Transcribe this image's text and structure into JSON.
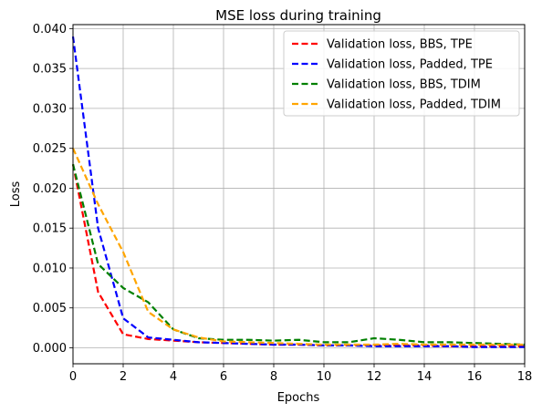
{
  "chart_data": {
    "type": "line",
    "title": "MSE loss during training",
    "xlabel": "Epochs",
    "ylabel": "Loss",
    "xlim": [
      0,
      18
    ],
    "ylim": [
      -0.002,
      0.0405
    ],
    "xticks": [
      0,
      2,
      4,
      6,
      8,
      10,
      12,
      14,
      16,
      18
    ],
    "xtick_labels": [
      "0",
      "2",
      "4",
      "6",
      "8",
      "10",
      "12",
      "14",
      "16",
      "18"
    ],
    "yticks": [
      0.0,
      0.005,
      0.01,
      0.015,
      0.02,
      0.025,
      0.03,
      0.035,
      0.04
    ],
    "ytick_labels": [
      "0.000",
      "0.005",
      "0.010",
      "0.015",
      "0.020",
      "0.025",
      "0.030",
      "0.035",
      "0.040"
    ],
    "grid": true,
    "legend_position": "top-right",
    "x": [
      0,
      1,
      2,
      3,
      4,
      5,
      6,
      7,
      8,
      9,
      10,
      11,
      12,
      13,
      14,
      15,
      16,
      17,
      18
    ],
    "series": [
      {
        "name": "Validation loss, BBS, TPE",
        "color": "#ff0000",
        "values": [
          0.023,
          0.007,
          0.0017,
          0.0011,
          0.0009,
          0.0007,
          0.0006,
          0.0005,
          0.0004,
          0.0004,
          0.0003,
          0.0003,
          0.0003,
          0.0003,
          0.0003,
          0.0002,
          0.0002,
          0.0002,
          0.0002
        ]
      },
      {
        "name": "Validation loss, Padded, TPE",
        "color": "#0000ff",
        "values": [
          0.039,
          0.015,
          0.0037,
          0.0013,
          0.001,
          0.0007,
          0.0006,
          0.0005,
          0.0004,
          0.0004,
          0.0003,
          0.0003,
          0.0002,
          0.0002,
          0.0002,
          0.0002,
          0.0001,
          0.0001,
          0.0001
        ]
      },
      {
        "name": "Validation loss, BBS, TDIM",
        "color": "#008000",
        "values": [
          0.023,
          0.0105,
          0.0075,
          0.0057,
          0.0023,
          0.0012,
          0.001,
          0.001,
          0.0009,
          0.001,
          0.0007,
          0.0007,
          0.0012,
          0.001,
          0.0007,
          0.0007,
          0.0006,
          0.0005,
          0.0004
        ]
      },
      {
        "name": "Validation loss, Padded, TDIM",
        "color": "#ffa500",
        "values": [
          0.025,
          0.018,
          0.012,
          0.0045,
          0.0023,
          0.0013,
          0.0008,
          0.0007,
          0.0006,
          0.0005,
          0.0004,
          0.0004,
          0.0004,
          0.0005,
          0.0004,
          0.0004,
          0.0004,
          0.0004,
          0.0004
        ]
      }
    ]
  }
}
